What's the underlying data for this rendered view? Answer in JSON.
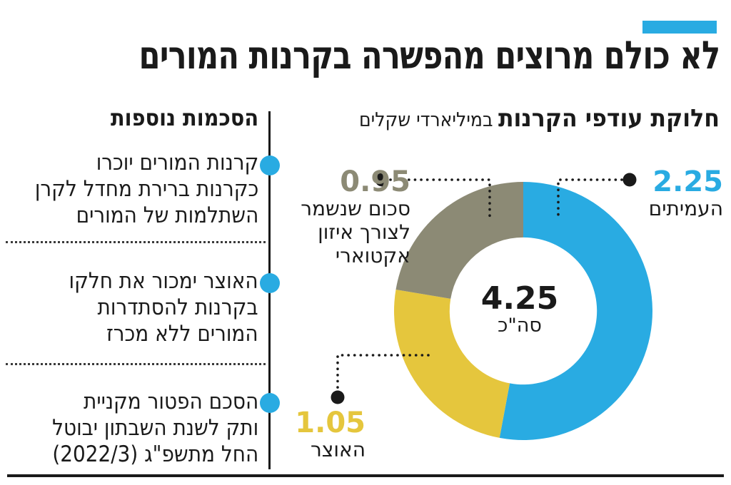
{
  "accent": {
    "bar_color": "#29ABE2"
  },
  "title": "לא כולם מרוצים מהפשרה בקרנות המורים",
  "chart_header": {
    "title": "חלוקת עודפי הקרנות",
    "subtitle": "במיליארדי שקלים"
  },
  "left_panel": {
    "header": "הסכמות נוספות",
    "bullet_color": "#29ABE2",
    "items": [
      {
        "lines": [
          "קרנות המורים יוכרו",
          "כקרנות ברירת מחדל לקרן",
          "השתלמות של המורים"
        ]
      },
      {
        "lines": [
          "האוצר ימכור את חלקו",
          "בקרנות להסתדרות",
          "המורים ללא מכרז"
        ]
      },
      {
        "lines": [
          "הסכם הפטור מקניית",
          "ותק לשנת השבתון יבוטל",
          "החל מתשפ\"ג (2022/3)"
        ]
      }
    ]
  },
  "chart_data": {
    "type": "pie",
    "variant": "donut",
    "title": "חלוקת עודפי הקרנות",
    "units_label": "במיליארדי שקלים",
    "center": {
      "value": "4.25",
      "label": "סה\"כ"
    },
    "start_angle_deg": 0,
    "direction": "clockwise",
    "inner_radius_ratio": 0.57,
    "slices": [
      {
        "name": "העמיתים",
        "value": 2.25,
        "display_value": "2.25",
        "color": "#29ABE2"
      },
      {
        "name": "האוצר",
        "value": 1.05,
        "display_value": "1.05",
        "color": "#E5C63D"
      },
      {
        "name": "סכום שנשמר לצורך איזון אקטוארי",
        "value": 0.95,
        "display_value": "0.95",
        "color": "#8C8A75",
        "label_lines": [
          "סכום שנשמר",
          "לצורך איזון",
          "אקטוארי"
        ]
      }
    ]
  }
}
